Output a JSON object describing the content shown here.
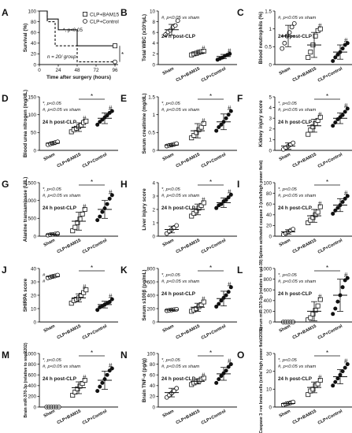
{
  "chart_data": [
    {
      "panel": "A",
      "type": "line",
      "ylabel": "Survival (%)",
      "xlabel": "Time after surgery (hours)",
      "xticks": [
        0,
        24,
        48,
        72,
        96
      ],
      "yticks": [
        0,
        20,
        40,
        60,
        80,
        100
      ],
      "xlim": [
        0,
        100
      ],
      "ylim": [
        0,
        100
      ],
      "legend": [
        "CLP+BAM15",
        "CLP+Control"
      ],
      "annotations": [
        "*, p<0.05",
        "n = 20/ group",
        "*"
      ],
      "series": [
        {
          "name": "CLP+BAM15",
          "marker": "square",
          "x": [
            0,
            10,
            10,
            24,
            24,
            48,
            48,
            96
          ],
          "values": [
            100,
            100,
            85,
            85,
            65,
            65,
            35,
            35
          ]
        },
        {
          "name": "CLP+Control",
          "marker": "circle",
          "x": [
            0,
            10,
            10,
            20,
            20,
            48,
            48,
            96
          ],
          "values": [
            100,
            100,
            80,
            80,
            35,
            35,
            5,
            5
          ]
        }
      ]
    },
    {
      "panel": "B",
      "type": "scatter",
      "ylabel": "Total WBC (x10³/µL)",
      "yticks": [
        0,
        2,
        4,
        6,
        8,
        10
      ],
      "ylim": [
        0,
        10
      ],
      "categories": [
        "Sham",
        "CLP+BAM15",
        "CLP+Control"
      ],
      "annotations": [
        "#, p<0.05 vs sham",
        "24 h post-CLP"
      ],
      "groups": [
        {
          "mean": 6.5,
          "sd": 1.0,
          "marker": "circle",
          "points": [
            5.6,
            6.1,
            6.4,
            7.0,
            7.3,
            8.2
          ]
        },
        {
          "mean": 2.2,
          "sd": 0.3,
          "marker": "square",
          "points": [
            1.8,
            2.0,
            2.1,
            2.3,
            2.4,
            2.5
          ]
        },
        {
          "mean": 1.5,
          "sd": 0.4,
          "marker": "circle-filled",
          "points": [
            0.9,
            1.1,
            1.3,
            1.6,
            1.8,
            2.0
          ]
        }
      ],
      "group_labels": [
        "",
        "#",
        "#"
      ],
      "sig_bars": []
    },
    {
      "panel": "C",
      "type": "scatter",
      "ylabel": "Blood neutrophils (%)",
      "yticks": [
        0,
        0.5,
        1.0,
        1.5
      ],
      "ylim": [
        0,
        1.5
      ],
      "categories": [
        "Sham",
        "CLP+BAM15",
        "CLP+Control"
      ],
      "annotations": [
        "24 h post-CLP",
        "#, p<0.05 vs sham"
      ],
      "groups": [
        {
          "mean": 0.8,
          "sd": 0.3,
          "marker": "circle",
          "points": [
            0.45,
            0.6,
            0.8,
            0.9,
            1.05,
            1.15
          ]
        },
        {
          "mean": 0.55,
          "sd": 0.35,
          "marker": "square",
          "points": [
            0.2,
            0.35,
            0.55,
            0.8,
            0.95,
            1.0
          ]
        },
        {
          "mean": 0.35,
          "sd": 0.2,
          "marker": "circle-filled",
          "points": [
            0.1,
            0.2,
            0.28,
            0.35,
            0.45,
            0.55,
            0.6
          ]
        }
      ],
      "group_labels": [
        "",
        "#",
        "#"
      ],
      "sig_bars": []
    },
    {
      "panel": "D",
      "type": "scatter",
      "ylabel": "Blood urea nitrogen (mg/dL)",
      "yticks": [
        0,
        50,
        100,
        150
      ],
      "ylim": [
        0,
        150
      ],
      "categories": [
        "Sham",
        "CLP+BAM15",
        "CLP+Control"
      ],
      "annotations": [
        "*, p<0.05",
        "#, p<0.05 vs sham",
        "24 h post-CLP"
      ],
      "groups": [
        {
          "mean": 20,
          "sd": 4,
          "marker": "circle",
          "points": [
            16,
            18,
            20,
            22,
            24
          ]
        },
        {
          "mean": 65,
          "sd": 12,
          "marker": "square",
          "points": [
            52,
            58,
            62,
            66,
            70,
            78,
            82
          ]
        },
        {
          "mean": 90,
          "sd": 15,
          "marker": "circle-filled",
          "points": [
            72,
            80,
            86,
            92,
            98,
            105,
            110
          ]
        }
      ],
      "group_labels": [
        "",
        "#",
        "#"
      ],
      "sig_bars": [
        [
          1,
          2
        ]
      ]
    },
    {
      "panel": "E",
      "type": "scatter",
      "ylabel": "Serum creatinine (mg/dL)",
      "yticks": [
        0.0,
        0.5,
        1.0,
        1.5
      ],
      "ylim": [
        0,
        1.5
      ],
      "categories": [
        "Sham",
        "CLP+BAM15",
        "CLP+Control"
      ],
      "annotations": [
        "*, p<0.05",
        "#, p<0.05 vs sham"
      ],
      "groups": [
        {
          "mean": 0.15,
          "sd": 0.03,
          "marker": "circle",
          "points": [
            0.12,
            0.14,
            0.15,
            0.17,
            0.19
          ]
        },
        {
          "mean": 0.55,
          "sd": 0.2,
          "marker": "square",
          "points": [
            0.35,
            0.42,
            0.5,
            0.58,
            0.65,
            0.75
          ]
        },
        {
          "mean": 0.8,
          "sd": 0.22,
          "marker": "circle-filled",
          "points": [
            0.55,
            0.65,
            0.72,
            0.8,
            0.9,
            1.0,
            1.1
          ]
        }
      ],
      "group_labels": [
        "",
        "#",
        "#"
      ],
      "sig_bars": [
        [
          1,
          2
        ]
      ]
    },
    {
      "panel": "F",
      "type": "scatter",
      "ylabel": "Kidney injury score",
      "yticks": [
        0,
        1,
        2,
        3,
        4,
        5
      ],
      "ylim": [
        0,
        5
      ],
      "categories": [
        "Sham",
        "CLP+BAM15",
        "CLP+Control"
      ],
      "annotations": [
        "*, p<0.05",
        "#, p<0.05 vs sham",
        "24 h post-CLP"
      ],
      "groups": [
        {
          "mean": 0.4,
          "sd": 0.3,
          "marker": "circle",
          "points": [
            0.1,
            0.25,
            0.4,
            0.55,
            0.7
          ]
        },
        {
          "mean": 2.3,
          "sd": 0.6,
          "marker": "square",
          "points": [
            1.5,
            1.9,
            2.2,
            2.5,
            2.8,
            3.1
          ]
        },
        {
          "mean": 3.0,
          "sd": 0.5,
          "marker": "circle-filled",
          "points": [
            2.3,
            2.6,
            2.9,
            3.1,
            3.3,
            3.6,
            3.9
          ]
        }
      ],
      "group_labels": [
        "",
        "#",
        "#"
      ],
      "sig_bars": [
        [
          1,
          2
        ]
      ]
    },
    {
      "panel": "G",
      "type": "scatter",
      "ylabel": "Alanine transaminase (U/L)",
      "yticks": [
        0,
        500,
        1000,
        1500
      ],
      "ylim": [
        0,
        1500
      ],
      "categories": [
        "Sham",
        "CLP+BAM15",
        "CLP+Control"
      ],
      "annotations": [
        "*, p<0.05",
        "#, p<0.05 vs sham",
        "24 h post-CLP"
      ],
      "groups": [
        {
          "mean": 50,
          "sd": 20,
          "marker": "circle",
          "points": [
            30,
            40,
            50,
            60,
            70
          ]
        },
        {
          "mean": 420,
          "sd": 250,
          "marker": "square",
          "points": [
            150,
            250,
            380,
            480,
            620,
            750
          ]
        },
        {
          "mean": 750,
          "sd": 250,
          "marker": "circle-filled",
          "points": [
            450,
            550,
            680,
            780,
            900,
            1050,
            1150
          ]
        }
      ],
      "group_labels": [
        "",
        "#",
        "#"
      ],
      "sig_bars": [
        [
          1,
          2
        ]
      ]
    },
    {
      "panel": "H",
      "type": "scatter",
      "ylabel": "Liver injury score",
      "yticks": [
        0,
        1,
        2,
        3,
        4
      ],
      "ylim": [
        0,
        4
      ],
      "categories": [
        "Sham",
        "CLP+BAM15",
        "CLP+Control"
      ],
      "annotations": [
        "*, p<0.05",
        "#, p<0.05 vs sham",
        "24 h post-CLP"
      ],
      "groups": [
        {
          "mean": 0.5,
          "sd": 0.25,
          "marker": "circle",
          "points": [
            0.2,
            0.35,
            0.5,
            0.65,
            0.8
          ]
        },
        {
          "mean": 2.0,
          "sd": 0.4,
          "marker": "square",
          "points": [
            1.5,
            1.7,
            1.9,
            2.1,
            2.3,
            2.5
          ]
        },
        {
          "mean": 2.5,
          "sd": 0.35,
          "marker": "circle-filled",
          "points": [
            2.1,
            2.3,
            2.4,
            2.6,
            2.7,
            2.9,
            3.1
          ]
        }
      ],
      "group_labels": [
        "",
        "#",
        "#"
      ],
      "sig_bars": [
        [
          1,
          2
        ]
      ]
    },
    {
      "panel": "I",
      "type": "scatter",
      "ylabel": "Spleen activated caspase 3 (cells/high power field)",
      "yticks": [
        0,
        20,
        40,
        60,
        80,
        100
      ],
      "ylim": [
        0,
        100
      ],
      "categories": [
        "Sham",
        "CLP+BAM15",
        "CLP+Control"
      ],
      "annotations": [
        "*, p<0.05",
        "#, p<0.05 vs sham",
        "24 h post-CLP"
      ],
      "groups": [
        {
          "mean": 8,
          "sd": 4,
          "marker": "circle",
          "points": [
            3,
            5,
            8,
            11,
            13
          ]
        },
        {
          "mean": 38,
          "sd": 12,
          "marker": "square",
          "points": [
            25,
            30,
            35,
            40,
            45,
            55
          ]
        },
        {
          "mean": 58,
          "sd": 12,
          "marker": "circle-filled",
          "points": [
            42,
            48,
            53,
            58,
            64,
            70,
            75
          ]
        }
      ],
      "group_labels": [
        "",
        "#",
        "#"
      ],
      "sig_bars": [
        [
          1,
          2
        ]
      ]
    },
    {
      "panel": "J",
      "type": "scatter",
      "ylabel": "SHIRPA score",
      "yticks": [
        0,
        10,
        20,
        30,
        40
      ],
      "ylim": [
        0,
        40
      ],
      "categories": [
        "Sham",
        "CLP+BAM15",
        "CLP+Control"
      ],
      "annotations": [
        "#",
        "#"
      ],
      "groups": [
        {
          "mean": 34,
          "sd": 1,
          "marker": "circle",
          "points": [
            33,
            33.5,
            34,
            34.5,
            35
          ]
        },
        {
          "mean": 18,
          "sd": 3,
          "marker": "square",
          "points": [
            14,
            16,
            17,
            18,
            20,
            22,
            24
          ]
        },
        {
          "mean": 13,
          "sd": 2.5,
          "marker": "circle-filled",
          "points": [
            9,
            11,
            12,
            13,
            14,
            15,
            17
          ]
        }
      ],
      "group_labels": [
        "",
        "#",
        "#"
      ],
      "sig_bars": [
        [
          1,
          2
        ]
      ]
    },
    {
      "panel": "K",
      "type": "scatter",
      "ylabel": "Serum s100β (pg/mL)",
      "yticks": [
        0,
        200,
        400,
        600,
        800
      ],
      "ylim": [
        0,
        800
      ],
      "categories": [
        "Sham",
        "CLP+BAM15",
        "CLP+Control"
      ],
      "annotations": [
        "*, p<0.05",
        "#, p<0.05 vs sham",
        "24 h post-CLP"
      ],
      "groups": [
        {
          "mean": 180,
          "sd": 10,
          "marker": "circle",
          "points": [
            170,
            175,
            180,
            185,
            190
          ]
        },
        {
          "mean": 220,
          "sd": 60,
          "marker": "square",
          "points": [
            160,
            180,
            200,
            230,
            260,
            300
          ]
        },
        {
          "mean": 350,
          "sd": 110,
          "marker": "circle-filled",
          "points": [
            230,
            270,
            320,
            360,
            400,
            450,
            520
          ]
        }
      ],
      "group_labels": [
        "",
        "#",
        "#"
      ],
      "sig_bars": [
        [
          1,
          2
        ]
      ]
    },
    {
      "panel": "L",
      "type": "scatter",
      "ylabel": "Serum miR-370-3p (relative to cel-39)",
      "yticks": [
        0,
        200,
        400,
        600,
        800,
        1000
      ],
      "ylim": [
        0,
        1000
      ],
      "categories": [
        "Sham",
        "CLP+BAM15",
        "CLP+Control"
      ],
      "annotations": [
        "*, p<0.05",
        "#, p<0.05 vs sham",
        "24 h post-CLP"
      ],
      "groups": [
        {
          "mean": 0,
          "sd": 0,
          "marker": "circle",
          "points": [
            0,
            0,
            0,
            0,
            0
          ]
        },
        {
          "mean": 200,
          "sd": 180,
          "marker": "square",
          "points": [
            40,
            80,
            150,
            220,
            300,
            420
          ]
        },
        {
          "mean": 500,
          "sd": 300,
          "marker": "circle-filled",
          "points": [
            150,
            250,
            380,
            500,
            650,
            780,
            820
          ]
        }
      ],
      "group_labels": [
        "",
        "#",
        "#"
      ],
      "sig_bars": [
        [
          1,
          2
        ]
      ]
    },
    {
      "panel": "M",
      "type": "scatter",
      "ylabel": "Brain miR-370-3p (relative to snoR202)",
      "yticks": [
        0,
        200,
        400,
        600,
        800,
        1000
      ],
      "ylim": [
        0,
        1000
      ],
      "categories": [
        "Sham",
        "CLP+BAM15",
        "CLP+Control"
      ],
      "annotations": [
        "*, p<0.05",
        "#, p<0.05 vs sham",
        "24 h post-CLP"
      ],
      "groups": [
        {
          "mean": 0,
          "sd": 0,
          "marker": "circle",
          "points": [
            0,
            0,
            0,
            0,
            0,
            0
          ]
        },
        {
          "mean": 360,
          "sd": 110,
          "marker": "square",
          "points": [
            220,
            280,
            340,
            390,
            440,
            500
          ]
        },
        {
          "mean": 500,
          "sd": 170,
          "marker": "circle-filled",
          "points": [
            300,
            380,
            450,
            520,
            600,
            680,
            720
          ]
        }
      ],
      "group_labels": [
        "",
        "#",
        "#"
      ],
      "sig_bars": [
        [
          1,
          2
        ]
      ]
    },
    {
      "panel": "N",
      "type": "scatter",
      "ylabel": "Brain TNF-α (pg/g)",
      "yticks": [
        0,
        20,
        40,
        60,
        80,
        100
      ],
      "ylim": [
        0,
        100
      ],
      "categories": [
        "Sham",
        "CLP+BAM15",
        "CLP+Control"
      ],
      "annotations": [
        "*, p<0.05",
        "#, p<0.05 vs sham",
        "24 h post-CLP"
      ],
      "groups": [
        {
          "mean": 27,
          "sd": 8,
          "marker": "circle",
          "points": [
            18,
            22,
            26,
            30,
            35
          ]
        },
        {
          "mean": 48,
          "sd": 5,
          "marker": "square",
          "points": [
            42,
            45,
            47,
            49,
            52,
            54
          ]
        },
        {
          "mean": 62,
          "sd": 12,
          "marker": "circle-filled",
          "points": [
            45,
            52,
            58,
            63,
            68,
            75,
            80
          ]
        }
      ],
      "group_labels": [
        "",
        "#",
        "#"
      ],
      "sig_bars": [
        [
          1,
          2
        ]
      ]
    },
    {
      "panel": "O",
      "type": "scatter",
      "ylabel": "Caspase 3 +ve brain cells (cells/ high power field/200x)",
      "yticks": [
        0,
        10,
        20,
        30
      ],
      "ylim": [
        0,
        30
      ],
      "categories": [
        "Sham",
        "CLP+BAM15",
        "CLP+Control"
      ],
      "annotations": [
        "*, p<0.05",
        "#, p<0.05 vs sham",
        "24 h post-CLP"
      ],
      "groups": [
        {
          "mean": 2,
          "sd": 0.8,
          "marker": "circle",
          "points": [
            1.2,
            1.6,
            2,
            2.4,
            2.8
          ]
        },
        {
          "mean": 11,
          "sd": 3,
          "marker": "square",
          "points": [
            7,
            9,
            10,
            12,
            13,
            15
          ]
        },
        {
          "mean": 17,
          "sd": 4,
          "marker": "circle-filled",
          "points": [
            12,
            14,
            16,
            18,
            20,
            22,
            24
          ]
        }
      ],
      "group_labels": [
        "",
        "#",
        "#"
      ],
      "sig_bars": [
        [
          1,
          2
        ]
      ]
    }
  ]
}
